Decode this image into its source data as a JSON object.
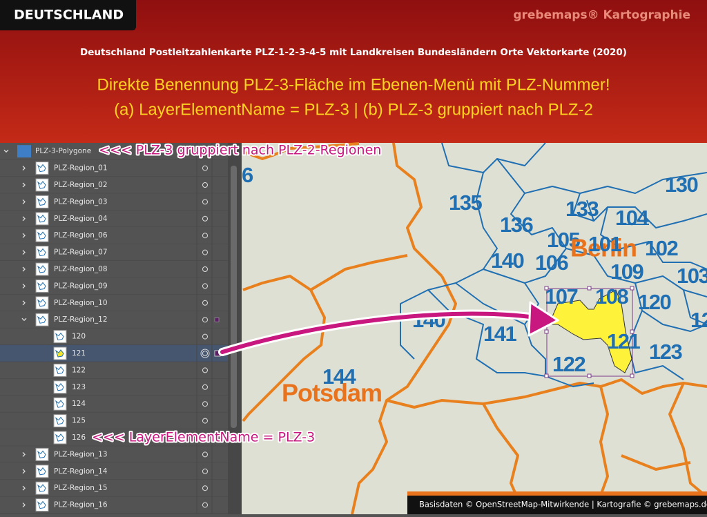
{
  "header": {
    "badge": "DEUTSCHLAND",
    "brand": "grebemaps® Kartographie",
    "subtitle": "Deutschland Postleitzahlenkarte PLZ-1-2-3-4-5 mit Landkreisen Bundesländern Orte Vektorkarte (2020)",
    "headline": [
      "Direkte Benennung PLZ-3-Fläche im Ebenen-Menü mit PLZ-Nummer!",
      "(a) LayerElementName = PLZ-3  |  (b) PLZ-3 gruppiert nach PLZ-2"
    ]
  },
  "layers": {
    "root": "PLZ-3-Polygone",
    "regions": [
      {
        "name": "PLZ-Region_01"
      },
      {
        "name": "PLZ-Region_02"
      },
      {
        "name": "PLZ-Region_03"
      },
      {
        "name": "PLZ-Region_04"
      },
      {
        "name": "PLZ-Region_06"
      },
      {
        "name": "PLZ-Region_07"
      },
      {
        "name": "PLZ-Region_08"
      },
      {
        "name": "PLZ-Region_09"
      },
      {
        "name": "PLZ-Region_10"
      },
      {
        "name": "PLZ-Region_12",
        "children": [
          {
            "name": "120"
          },
          {
            "name": "121",
            "selected": true
          },
          {
            "name": "122"
          },
          {
            "name": "123"
          },
          {
            "name": "124"
          },
          {
            "name": "125"
          },
          {
            "name": "126"
          }
        ]
      },
      {
        "name": "PLZ-Region_13"
      },
      {
        "name": "PLZ-Region_14"
      },
      {
        "name": "PLZ-Region_15"
      },
      {
        "name": "PLZ-Region_16"
      }
    ]
  },
  "annotations": [
    "<<< PLZ-3 gruppiert nach PLZ-2-Regionen",
    "<<< LayerElementName = PLZ-3"
  ],
  "map": {
    "labels": [
      "6",
      "130",
      "135",
      "133",
      "104",
      "136",
      "105",
      "Berlin",
      "101",
      "102",
      "140",
      "106",
      "109",
      "103",
      "107",
      "108",
      "120",
      "12",
      "140",
      "141",
      "121",
      "123",
      "122",
      "144",
      "Potsdam"
    ]
  },
  "footer": "Basisdaten ©  OpenStreetMap-Mitwirkende | Kartografie © grebemaps.de"
}
